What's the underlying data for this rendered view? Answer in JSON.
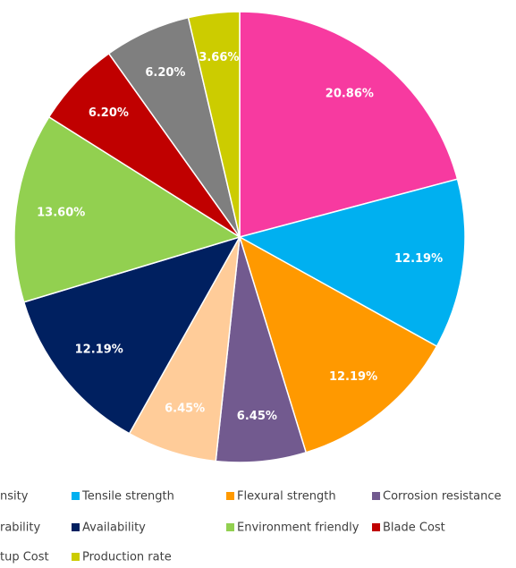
{
  "chart_data": {
    "type": "pie",
    "categories": [
      "nsity",
      "Tensile strength",
      "Flexural strength",
      "Corrosion resistance",
      "rability",
      "Availability",
      "Environment friendly",
      "Blade Cost",
      "tup Cost",
      "Production rate"
    ],
    "values": [
      20.86,
      12.19,
      12.19,
      6.45,
      6.45,
      12.19,
      13.6,
      6.2,
      6.2,
      3.66
    ],
    "value_labels": [
      "20.86%",
      "12.19%",
      "12.19%",
      "6.45%",
      "6.45%",
      "12.19%",
      "13.60%",
      "6.20%",
      "6.20%",
      "3.66%"
    ],
    "colors": [
      "#f73aa0",
      "#00b0f0",
      "#ff9900",
      "#725a8f",
      "#ffcc99",
      "#002060",
      "#92d050",
      "#c00000",
      "#7f7f7f",
      "#cccc00"
    ]
  }
}
